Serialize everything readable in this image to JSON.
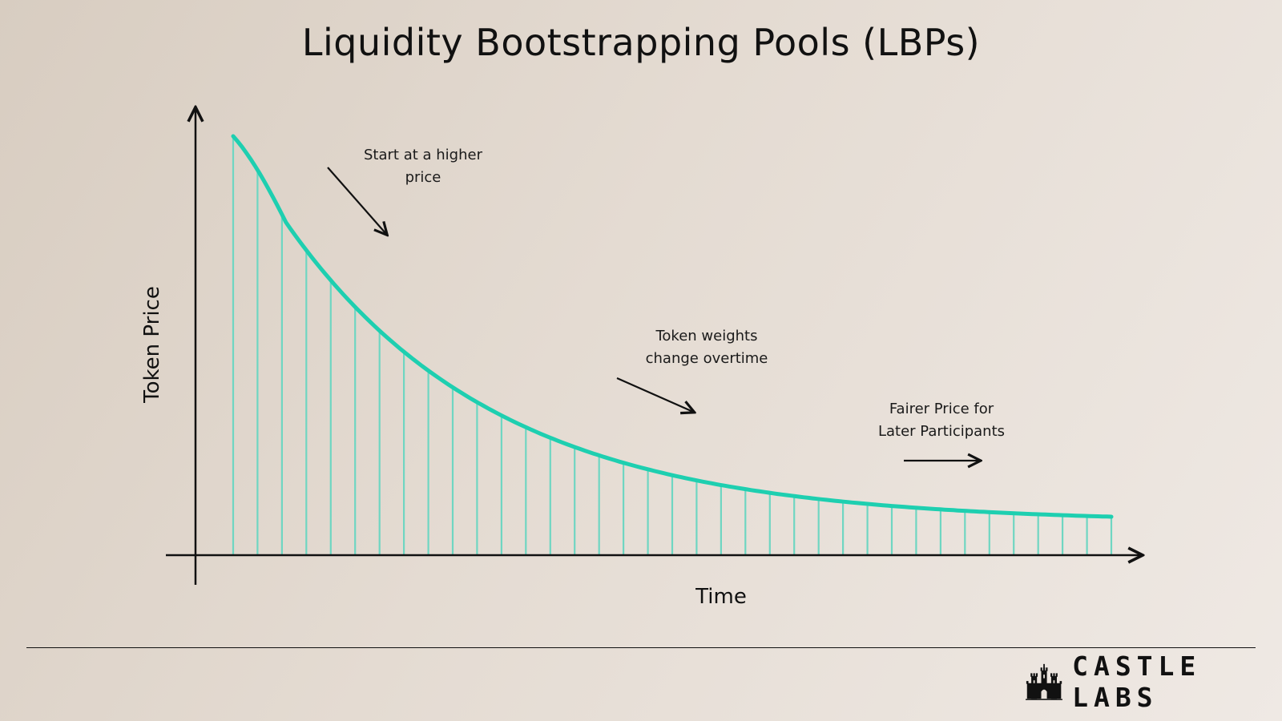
{
  "title": "Liquidity Bootstrapping Pools (LBPs)",
  "axes": {
    "y_label": "Token Price",
    "x_label": "Time"
  },
  "annotations": [
    {
      "id": "start",
      "lines": [
        "Start at a higher",
        "price"
      ]
    },
    {
      "id": "weights",
      "lines": [
        "Token weights",
        "change overtime"
      ]
    },
    {
      "id": "fairer",
      "lines": [
        "Fairer Price for",
        "Later Participants"
      ]
    }
  ],
  "curve": {
    "color": "#1ecfb0",
    "stem_color": "#6fd6c2",
    "stem_count": 37
  },
  "brand": {
    "name": "CASTLE LABS",
    "icon": "castle-icon"
  }
}
